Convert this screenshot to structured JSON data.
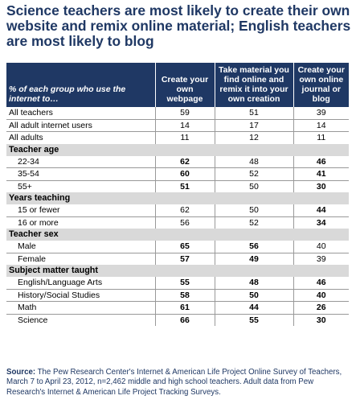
{
  "title": "Science teachers are most likely to create their own website and remix online material; English teachers are most likely to blog",
  "source_label": "Source:",
  "source_text": "The Pew Research Center's Internet & American Life Project Online Survey of Teachers, March 7 to April 23, 2012, n=2,462 middle and high school teachers. Adult data from Pew Research's Internet & American Life Project Tracking Surveys.",
  "chart_data": {
    "type": "table",
    "row_header": "% of each group who use the internet to…",
    "columns": [
      "Create your own webpage",
      "Take material you find online and remix it into your own creation",
      "Create your own online journal or blog"
    ],
    "groups": [
      {
        "name": "",
        "rows": [
          {
            "label": "All teachers",
            "values": [
              59,
              51,
              39
            ],
            "bold": [
              false,
              false,
              false
            ]
          },
          {
            "label": "All adult internet users",
            "values": [
              14,
              17,
              14
            ],
            "bold": [
              false,
              false,
              false
            ]
          },
          {
            "label": "All adults",
            "values": [
              11,
              12,
              11
            ],
            "bold": [
              false,
              false,
              false
            ]
          }
        ]
      },
      {
        "name": "Teacher age",
        "rows": [
          {
            "label": "22-34",
            "values": [
              62,
              48,
              46
            ],
            "bold": [
              true,
              false,
              true
            ]
          },
          {
            "label": "35-54",
            "values": [
              60,
              52,
              41
            ],
            "bold": [
              true,
              false,
              true
            ]
          },
          {
            "label": "55+",
            "values": [
              51,
              50,
              30
            ],
            "bold": [
              true,
              false,
              true
            ]
          }
        ]
      },
      {
        "name": "Years teaching",
        "rows": [
          {
            "label": "15 or fewer",
            "values": [
              62,
              50,
              44
            ],
            "bold": [
              false,
              false,
              true
            ]
          },
          {
            "label": "16 or more",
            "values": [
              56,
              52,
              34
            ],
            "bold": [
              false,
              false,
              true
            ]
          }
        ]
      },
      {
        "name": "Teacher sex",
        "rows": [
          {
            "label": "Male",
            "values": [
              65,
              56,
              40
            ],
            "bold": [
              true,
              true,
              false
            ]
          },
          {
            "label": "Female",
            "values": [
              57,
              49,
              39
            ],
            "bold": [
              true,
              true,
              false
            ]
          }
        ]
      },
      {
        "name": "Subject matter taught",
        "rows": [
          {
            "label": "English/Language Arts",
            "values": [
              55,
              48,
              46
            ],
            "bold": [
              true,
              true,
              true
            ]
          },
          {
            "label": "History/Social Studies",
            "values": [
              58,
              50,
              40
            ],
            "bold": [
              true,
              true,
              true
            ]
          },
          {
            "label": "Math",
            "values": [
              61,
              44,
              26
            ],
            "bold": [
              true,
              true,
              true
            ]
          },
          {
            "label": "Science",
            "values": [
              66,
              55,
              30
            ],
            "bold": [
              true,
              true,
              true
            ]
          }
        ]
      }
    ],
    "colors": {
      "header_bg": "#1f3864",
      "title": "#1f3864",
      "section_bg": "#d9d9d9"
    }
  }
}
